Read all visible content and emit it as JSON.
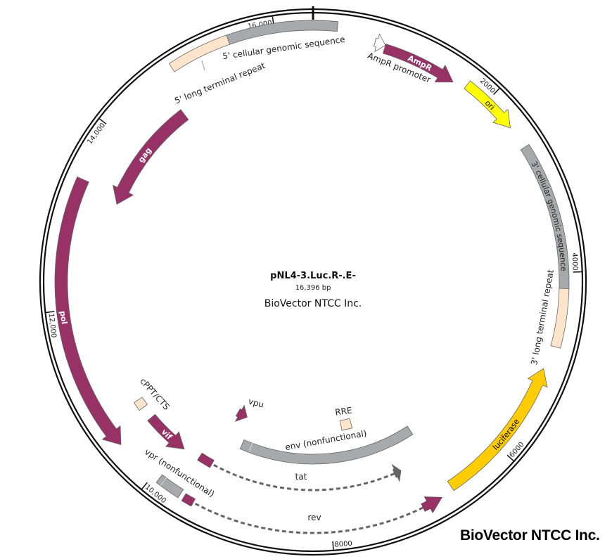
{
  "plasmid": {
    "name": "pNL4-3.Luc.R-.E-",
    "length_label": "16,396 bp",
    "length_bp": 16396,
    "company": "BioVector NTCC Inc."
  },
  "watermark": "BioVector NTCC Inc.",
  "ticks": [
    {
      "bp": 2000,
      "label": "2000"
    },
    {
      "bp": 4000,
      "label": "4000"
    },
    {
      "bp": 6000,
      "label": "6000"
    },
    {
      "bp": 8000,
      "label": "8000"
    },
    {
      "bp": 10000,
      "label": "10,000"
    },
    {
      "bp": 12000,
      "label": "12,000"
    },
    {
      "bp": 14000,
      "label": "14,000"
    },
    {
      "bp": 16000,
      "label": "16,000"
    }
  ],
  "colors": {
    "hiv_gene": "#983166",
    "grey_region": "#a7a9ac",
    "ltr": "#fde5cc",
    "ori": "#ffff00",
    "luciferase": "#ffcc00",
    "promoter": "#ffffff",
    "dashed": "#666666"
  },
  "features": [
    {
      "name": "5' long terminal repeat",
      "start": 14875,
      "end": 15517,
      "strand": 0,
      "color": "#fde5cc"
    },
    {
      "name": "5' cellular genomic sequence",
      "start": 15517,
      "end": 16646,
      "strand": 0,
      "color": "#a7a9ac"
    },
    {
      "name": "AmpR promoter",
      "start": 660,
      "end": 774,
      "strand": 1,
      "color": "#ffffff"
    },
    {
      "name": "AmpR",
      "start": 774,
      "end": 1594,
      "strand": 1,
      "color": "#983166",
      "inside_label": "AmpR",
      "label_color": "#ffffff"
    },
    {
      "name": "ori",
      "start": 1730,
      "end": 2368,
      "strand": 1,
      "color": "#ffff00",
      "inside_label": "ori",
      "label_color": "#000000"
    },
    {
      "name": "3' cellular genomic sequence",
      "start": 2619,
      "end": 4167,
      "strand": 0,
      "color": "#a7a9ac",
      "inside_label": "3' cellular genomic sequence",
      "label_color": "#222222"
    },
    {
      "name": "3' long terminal repeat",
      "start": 4167,
      "end": 4782,
      "strand": 0,
      "color": "#fde5cc"
    },
    {
      "name": "luciferase",
      "start": 5037,
      "end": 6650,
      "strand": -1,
      "color": "#ffcc00",
      "inside_label": "luciferase",
      "label_color": "#000000"
    },
    {
      "name": "env (nonfunctional)",
      "start": 6686,
      "end": 9273,
      "strand": 0,
      "color": "#a7a9ac"
    },
    {
      "name": "RRE",
      "start": 7515,
      "end": 7697,
      "strand": 0,
      "color": "#fde5cc"
    },
    {
      "name": "vpu",
      "start": 9380,
      "end": 9560,
      "strand": -1,
      "color": "#983166"
    },
    {
      "name": "vpr (nonfunctional)",
      "start": 9656,
      "end": 9929,
      "strand": 0,
      "color": "#a7a9ac"
    },
    {
      "name": "vif",
      "start": 9911,
      "end": 10476,
      "strand": -1,
      "color": "#983166",
      "inside_label": "vif",
      "label_color": "#ffffff"
    },
    {
      "name": "cPPT/CTS",
      "start": 10635,
      "end": 10748,
      "strand": 0,
      "color": "#fde5cc"
    },
    {
      "name": "pol",
      "start": 10462,
      "end": 13392,
      "strand": -1,
      "color": "#983166",
      "inside_label": "pol",
      "label_color": "#ffffff"
    },
    {
      "name": "gag",
      "start": 13281,
      "end": 14688,
      "strand": -1,
      "color": "#983166",
      "inside_label": "gag",
      "label_color": "#ffffff"
    }
  ],
  "split_genes": [
    {
      "name": "tat",
      "start": 7060,
      "end": 9700,
      "exons": [
        [
          7060,
          7150
        ],
        [
          9520,
          9700
        ]
      ],
      "strand": -1
    },
    {
      "name": "rev",
      "start": 6790,
      "end": 9610,
      "exons": [
        [
          6790,
          7015
        ],
        [
          9495,
          9610
        ]
      ],
      "strand": -1
    }
  ],
  "outside_labels": {
    "ltr5": "5' long terminal repeat",
    "cell5": "5' cellular genomic sequence",
    "ampr_promoter": "AmpR promoter",
    "ltr3": "3' long terminal repeat",
    "cppt": "cPPT/CTS",
    "vpu": "vpu",
    "rre": "RRE",
    "env": "env (nonfunctional)",
    "tat": "tat",
    "vpr": "vpr (nonfunctional)",
    "rev": "rev"
  }
}
